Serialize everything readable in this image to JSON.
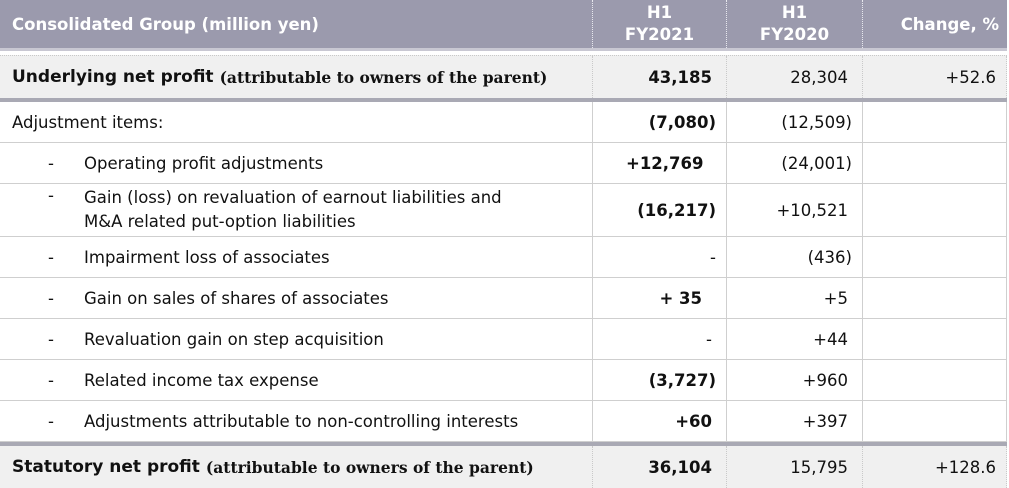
{
  "header": {
    "col1": "Consolidated Group (million yen)",
    "col2_line1": "H1",
    "col2_line2": "FY2021",
    "col3_line1": "H1",
    "col3_line2": "FY2020",
    "col4": "Change, %"
  },
  "underlying": {
    "label": "Underlying net profit",
    "note": "(attributable to owners of the parent)",
    "fy2021": "43,185",
    "fy2020": "28,304",
    "change": "+52.6"
  },
  "adjustments_header": {
    "label": "Adjustment items:",
    "fy2021": "(7,080)",
    "fy2020": "(12,509)"
  },
  "items": [
    {
      "dash": "-",
      "label": "Operating profit adjustments",
      "fy2021": "+12,769",
      "fy2020": "(24,001)"
    },
    {
      "dash": "-",
      "label_line1": "Gain (loss) on revaluation of earnout liabilities and",
      "label_line2": "M&A related put-option liabilities",
      "fy2021": "(16,217)",
      "fy2020": "+10,521"
    },
    {
      "dash": "-",
      "label": "Impairment loss of associates",
      "fy2021": "-",
      "fy2020": "(436)"
    },
    {
      "dash": "-",
      "label": "Gain on sales of shares of associates",
      "fy2021": "+ 35",
      "fy2020": "+5"
    },
    {
      "dash": "-",
      "label": "Revaluation gain on step acquisition",
      "fy2021": "-",
      "fy2020": "+44"
    },
    {
      "dash": "-",
      "label": "Related income tax expense",
      "fy2021": "(3,727)",
      "fy2020": "+960"
    },
    {
      "dash": "-",
      "label": "Adjustments attributable to non-controlling interests",
      "fy2021": "+60",
      "fy2020": "+397"
    }
  ],
  "statutory": {
    "label": "Statutory net profit",
    "note": "(attributable to owners of the parent)",
    "fy2021": "36,104",
    "fy2020": "15,795",
    "change": "+128.6"
  },
  "colors": {
    "header_bg": "#9b9aad",
    "summary_bg": "#f0f0f0",
    "separator": "#a9a9b4"
  }
}
